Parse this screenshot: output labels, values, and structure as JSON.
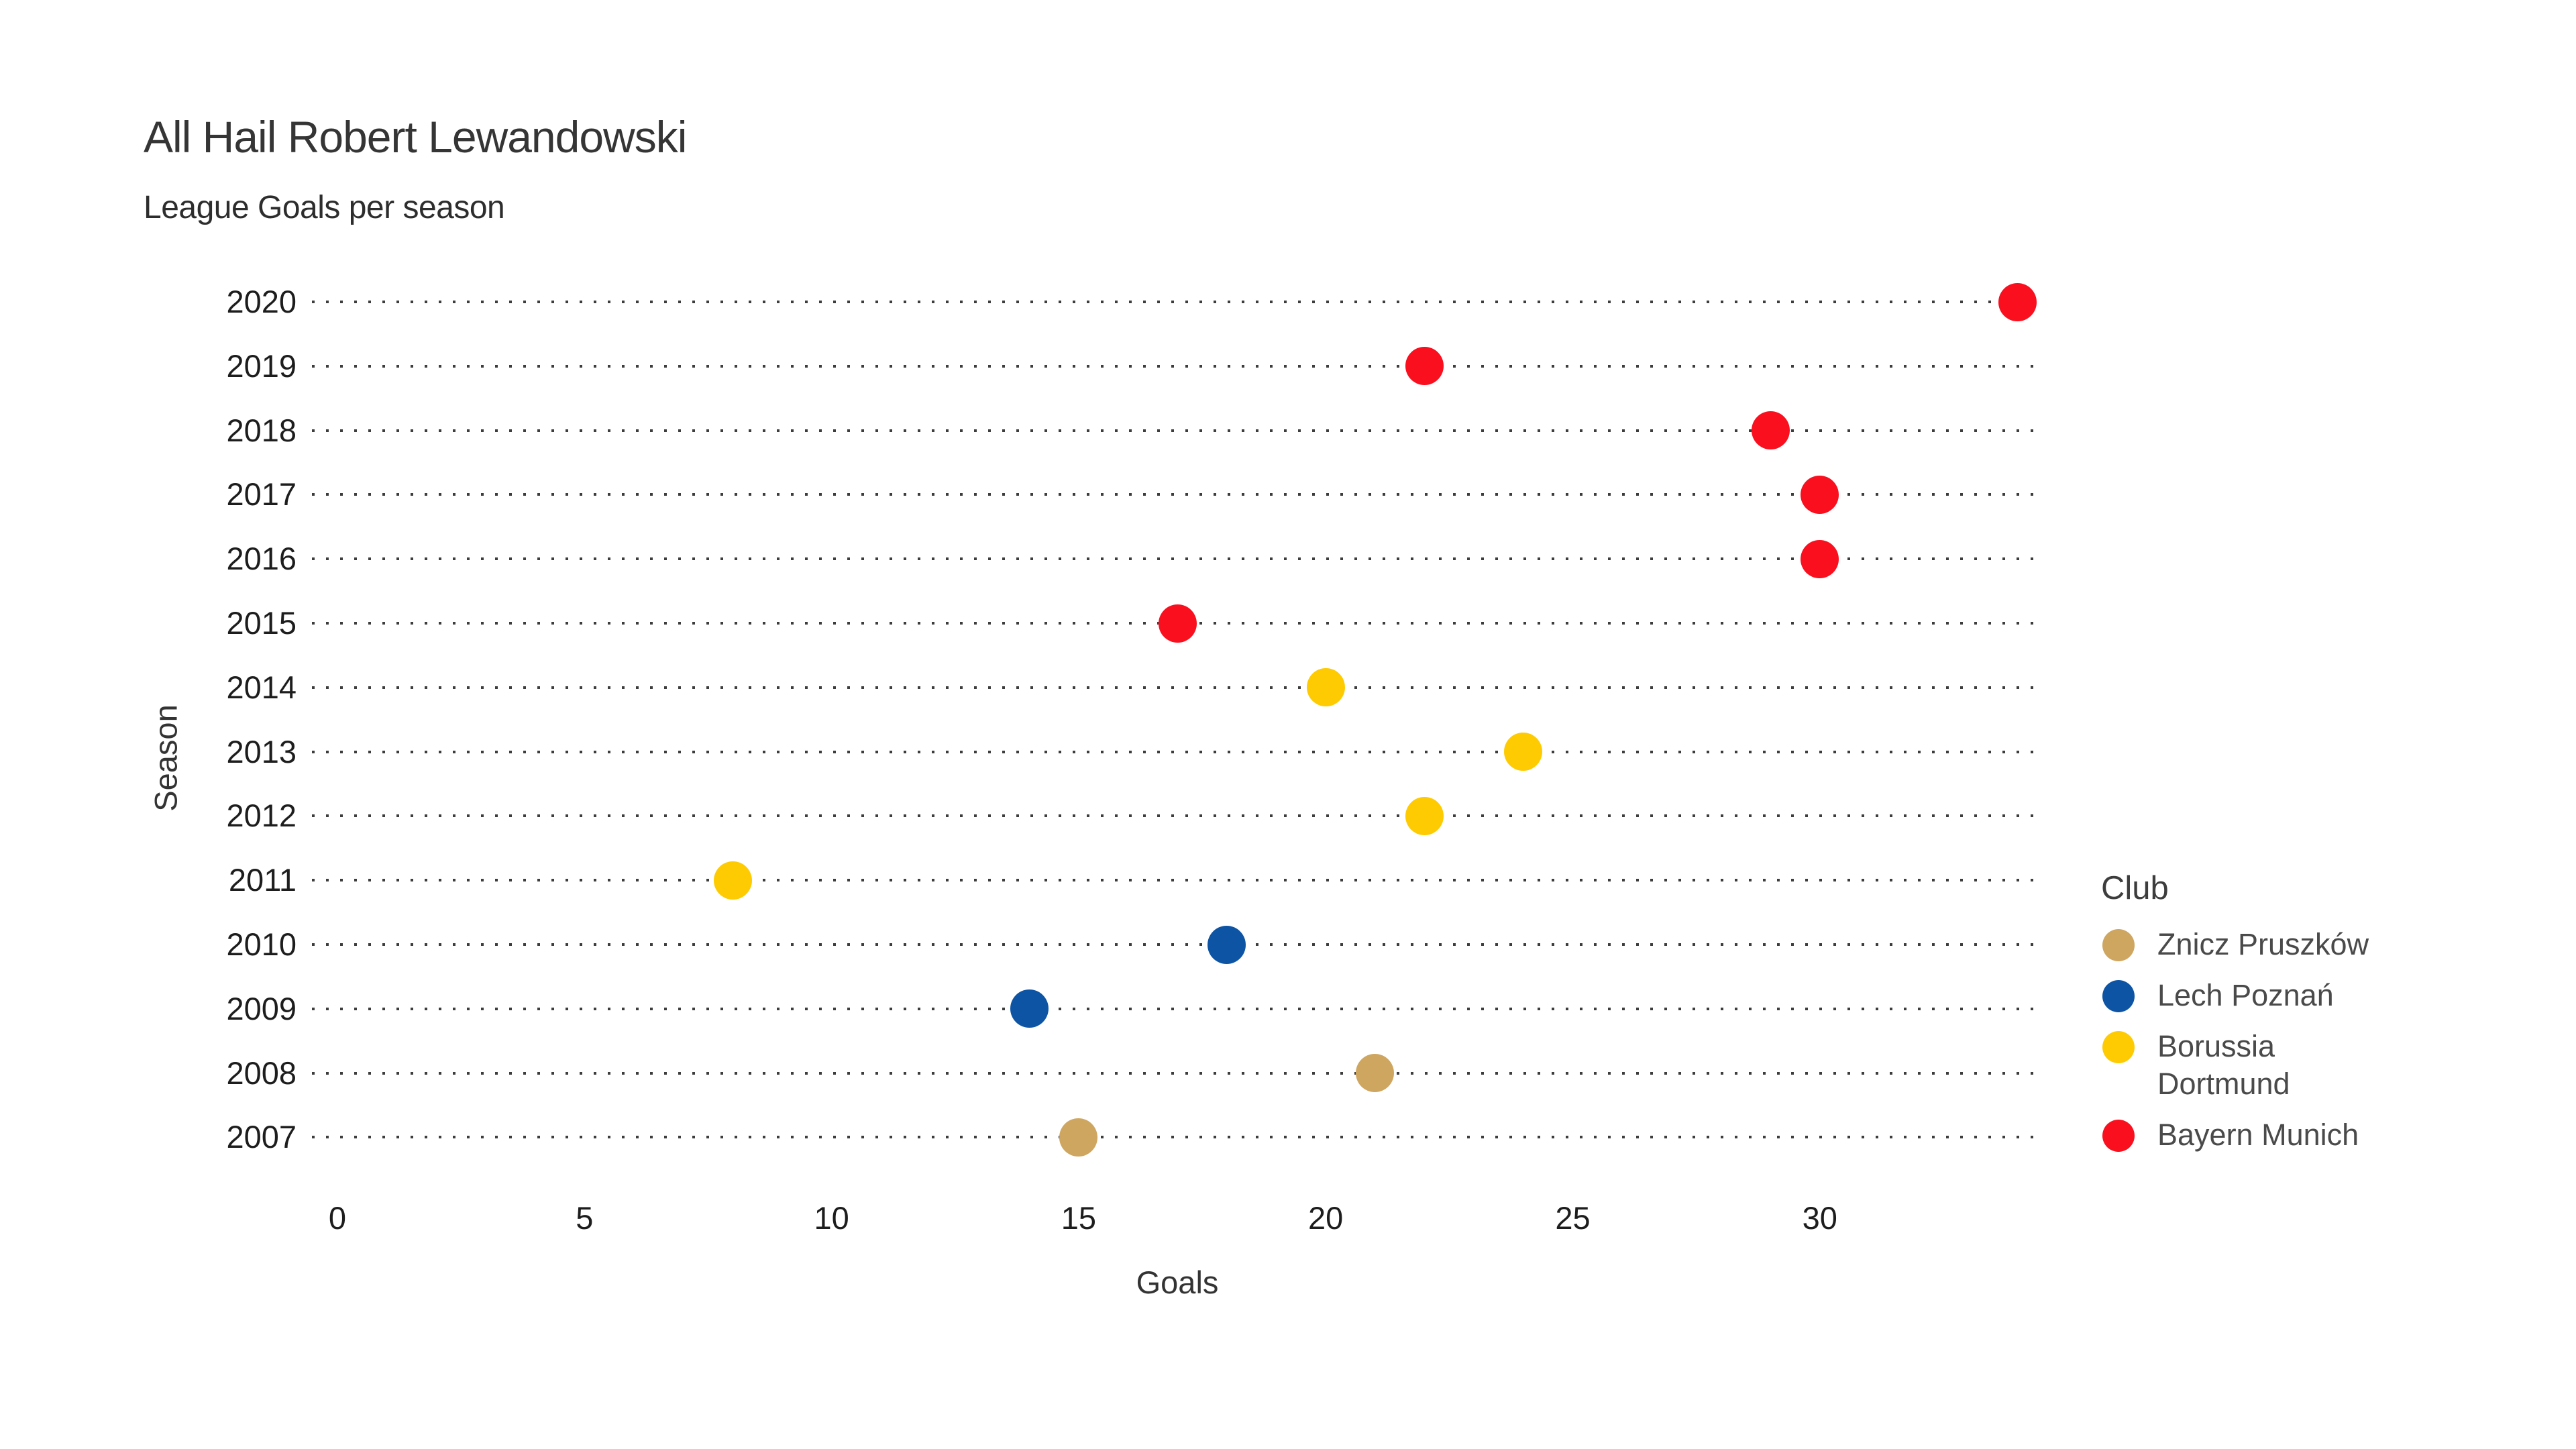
{
  "chart_data": {
    "type": "scatter",
    "title": "All Hail Robert Lewandowski",
    "subtitle": "League Goals per season",
    "xlabel": "Goals",
    "ylabel": "Season",
    "x_ticks": [
      0,
      5,
      10,
      15,
      20,
      25,
      30
    ],
    "xlim": [
      -0.5,
      34.5
    ],
    "y_categories": [
      "2020",
      "2019",
      "2018",
      "2017",
      "2016",
      "2015",
      "2014",
      "2013",
      "2012",
      "2011",
      "2010",
      "2009",
      "2008",
      "2007"
    ],
    "grid": {
      "axis": "y",
      "style": "dotted",
      "color": "#3d3d3d"
    },
    "legend": {
      "title": "Club",
      "position": "right"
    },
    "series": [
      {
        "name": "Znicz Pruszków",
        "color": "#CEA660",
        "points": [
          {
            "season": "2007",
            "goals": 15
          },
          {
            "season": "2008",
            "goals": 21
          }
        ]
      },
      {
        "name": "Lech Poznań",
        "color": "#0D54A4",
        "points": [
          {
            "season": "2009",
            "goals": 14
          },
          {
            "season": "2010",
            "goals": 18
          }
        ]
      },
      {
        "name": "Borussia Dortmund",
        "color": "#FECB02",
        "points": [
          {
            "season": "2011",
            "goals": 8
          },
          {
            "season": "2012",
            "goals": 22
          },
          {
            "season": "2013",
            "goals": 24
          },
          {
            "season": "2014",
            "goals": 20
          }
        ]
      },
      {
        "name": "Bayern Munich",
        "color": "#F90F1E",
        "points": [
          {
            "season": "2015",
            "goals": 17
          },
          {
            "season": "2016",
            "goals": 30
          },
          {
            "season": "2017",
            "goals": 30
          },
          {
            "season": "2018",
            "goals": 29
          },
          {
            "season": "2019",
            "goals": 22
          },
          {
            "season": "2020",
            "goals": 34
          }
        ]
      }
    ]
  }
}
